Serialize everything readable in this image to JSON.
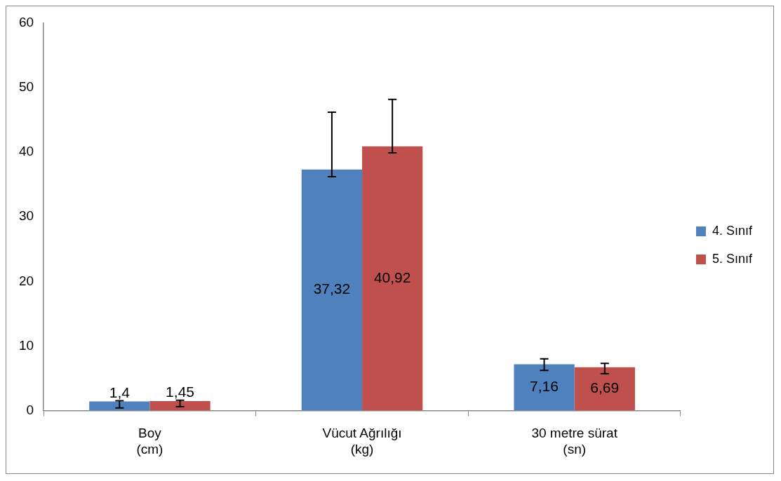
{
  "chart_data": {
    "type": "bar",
    "categories": [
      "Boy\n(cm)",
      "Vücut Ağrılığı\n(kg)",
      "30 metre sürat\n(sn)"
    ],
    "series": [
      {
        "name": "4. Sınıf",
        "color": "#4f81bd",
        "values": [
          1.4,
          37.32,
          7.16
        ],
        "value_labels": [
          "1,4",
          "37,32",
          "7,16"
        ],
        "errors": [
          [
            0.4,
            1.5
          ],
          [
            36.2,
            46.2
          ],
          [
            6.2,
            8.0
          ]
        ]
      },
      {
        "name": "5. Sınıf",
        "color": "#c0504d",
        "values": [
          1.45,
          40.92,
          6.69
        ],
        "value_labels": [
          "1,45",
          "40,92",
          "6,69"
        ],
        "errors": [
          [
            0.6,
            1.6
          ],
          [
            39.9,
            48.2
          ],
          [
            5.7,
            7.3
          ]
        ]
      }
    ],
    "ylim": [
      0,
      60
    ],
    "yticks": [
      0,
      10,
      20,
      30,
      40,
      50,
      60
    ],
    "grid": false,
    "legend": "right"
  }
}
